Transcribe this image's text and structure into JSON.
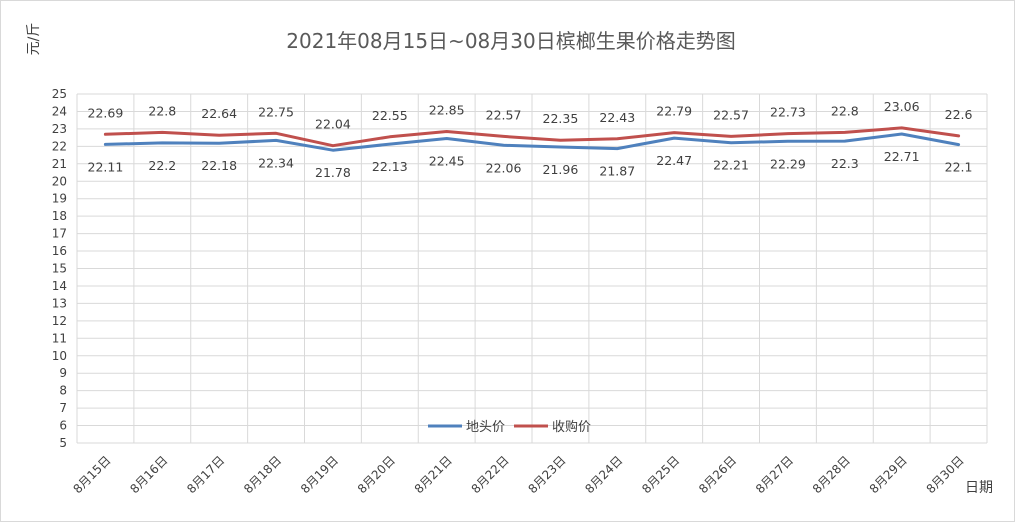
{
  "chart_data": {
    "type": "line",
    "title": "2021年08月15日~08月30日槟榔生果价格走势图",
    "ylabel": "元/斤",
    "xlabel": "日期",
    "ylim": [
      5,
      25
    ],
    "ystep": 1,
    "grid": true,
    "legend_position": "bottom-center",
    "categories": [
      "8月15日",
      "8月16日",
      "8月17日",
      "8月18日",
      "8月19日",
      "8月20日",
      "8月21日",
      "8月22日",
      "8月23日",
      "8月24日",
      "8月25日",
      "8月26日",
      "8月27日",
      "8月28日",
      "8月29日",
      "8月30日"
    ],
    "series": [
      {
        "name": "地头价",
        "color": "#4f81bd",
        "label_side": "below",
        "values": [
          22.11,
          22.2,
          22.18,
          22.34,
          21.78,
          22.13,
          22.45,
          22.06,
          21.96,
          21.87,
          22.47,
          22.21,
          22.29,
          22.3,
          22.71,
          22.1
        ]
      },
      {
        "name": "收购价",
        "color": "#c0504d",
        "label_side": "above",
        "values": [
          22.69,
          22.8,
          22.64,
          22.75,
          22.04,
          22.55,
          22.85,
          22.57,
          22.35,
          22.43,
          22.79,
          22.57,
          22.73,
          22.8,
          23.06,
          22.6
        ]
      }
    ]
  }
}
